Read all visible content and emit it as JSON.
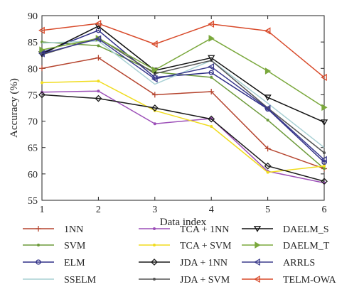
{
  "chart_data": {
    "type": "line",
    "x": [
      1,
      2,
      3,
      4,
      5,
      6
    ],
    "xlabel": "Data index",
    "ylabel": "Accuracy (%)",
    "xlim": [
      1,
      6
    ],
    "ylim": [
      55,
      90
    ],
    "xticks": [
      1,
      2,
      3,
      4,
      5,
      6
    ],
    "yticks": [
      55,
      60,
      65,
      70,
      75,
      80,
      85,
      90
    ],
    "grid": false,
    "legend_position": "bottom",
    "series": [
      {
        "name": "1NN",
        "color": "#b5442e",
        "marker": "plus",
        "values": [
          80.0,
          82.0,
          75.0,
          75.6,
          64.8,
          61.0
        ]
      },
      {
        "name": "SVM",
        "color": "#6c9a3a",
        "marker": "dot",
        "values": [
          85.0,
          84.3,
          79.3,
          78.3,
          70.2,
          61.0
        ]
      },
      {
        "name": "ELM",
        "color": "#2e2e86",
        "marker": "circle",
        "values": [
          83.0,
          87.2,
          78.3,
          79.2,
          72.3,
          62.2
        ]
      },
      {
        "name": "SSELM",
        "color": "#a8d0d4",
        "marker": "none",
        "values": [
          84.8,
          85.2,
          77.0,
          81.5,
          73.4,
          65.0
        ]
      },
      {
        "name": "TCA + 1NN",
        "color": "#9c4fb8",
        "marker": "dot",
        "values": [
          75.5,
          75.7,
          69.5,
          70.5,
          60.5,
          58.3
        ]
      },
      {
        "name": "TCA + SVM",
        "color": "#f0dc1e",
        "marker": "dot",
        "values": [
          77.3,
          77.6,
          72.0,
          69.0,
          60.3,
          61.5
        ]
      },
      {
        "name": "JDA + 1NN",
        "color": "#1a1a1a",
        "marker": "diamond",
        "values": [
          75.0,
          74.3,
          72.5,
          70.4,
          61.5,
          58.6
        ]
      },
      {
        "name": "JDA + SVM",
        "color": "#555555",
        "marker": "dot",
        "values": [
          82.6,
          85.8,
          79.0,
          81.5,
          72.5,
          64.0
        ]
      },
      {
        "name": "DAELM_S",
        "color": "#111111",
        "marker": "tri-down",
        "values": [
          82.7,
          88.0,
          79.6,
          82.0,
          74.5,
          69.8
        ]
      },
      {
        "name": "DAELM_T",
        "color": "#7aa83c",
        "marker": "tri-right",
        "values": [
          83.5,
          85.7,
          79.7,
          85.7,
          79.5,
          72.6
        ]
      },
      {
        "name": "ARRLS",
        "color": "#3a3a8c",
        "marker": "tri-left",
        "values": [
          82.8,
          85.6,
          78.0,
          80.3,
          72.4,
          62.7
        ]
      },
      {
        "name": "TELM-OWA",
        "color": "#d84a2a",
        "marker": "tri-left",
        "values": [
          87.2,
          88.5,
          84.6,
          88.4,
          87.1,
          78.3
        ]
      }
    ]
  }
}
